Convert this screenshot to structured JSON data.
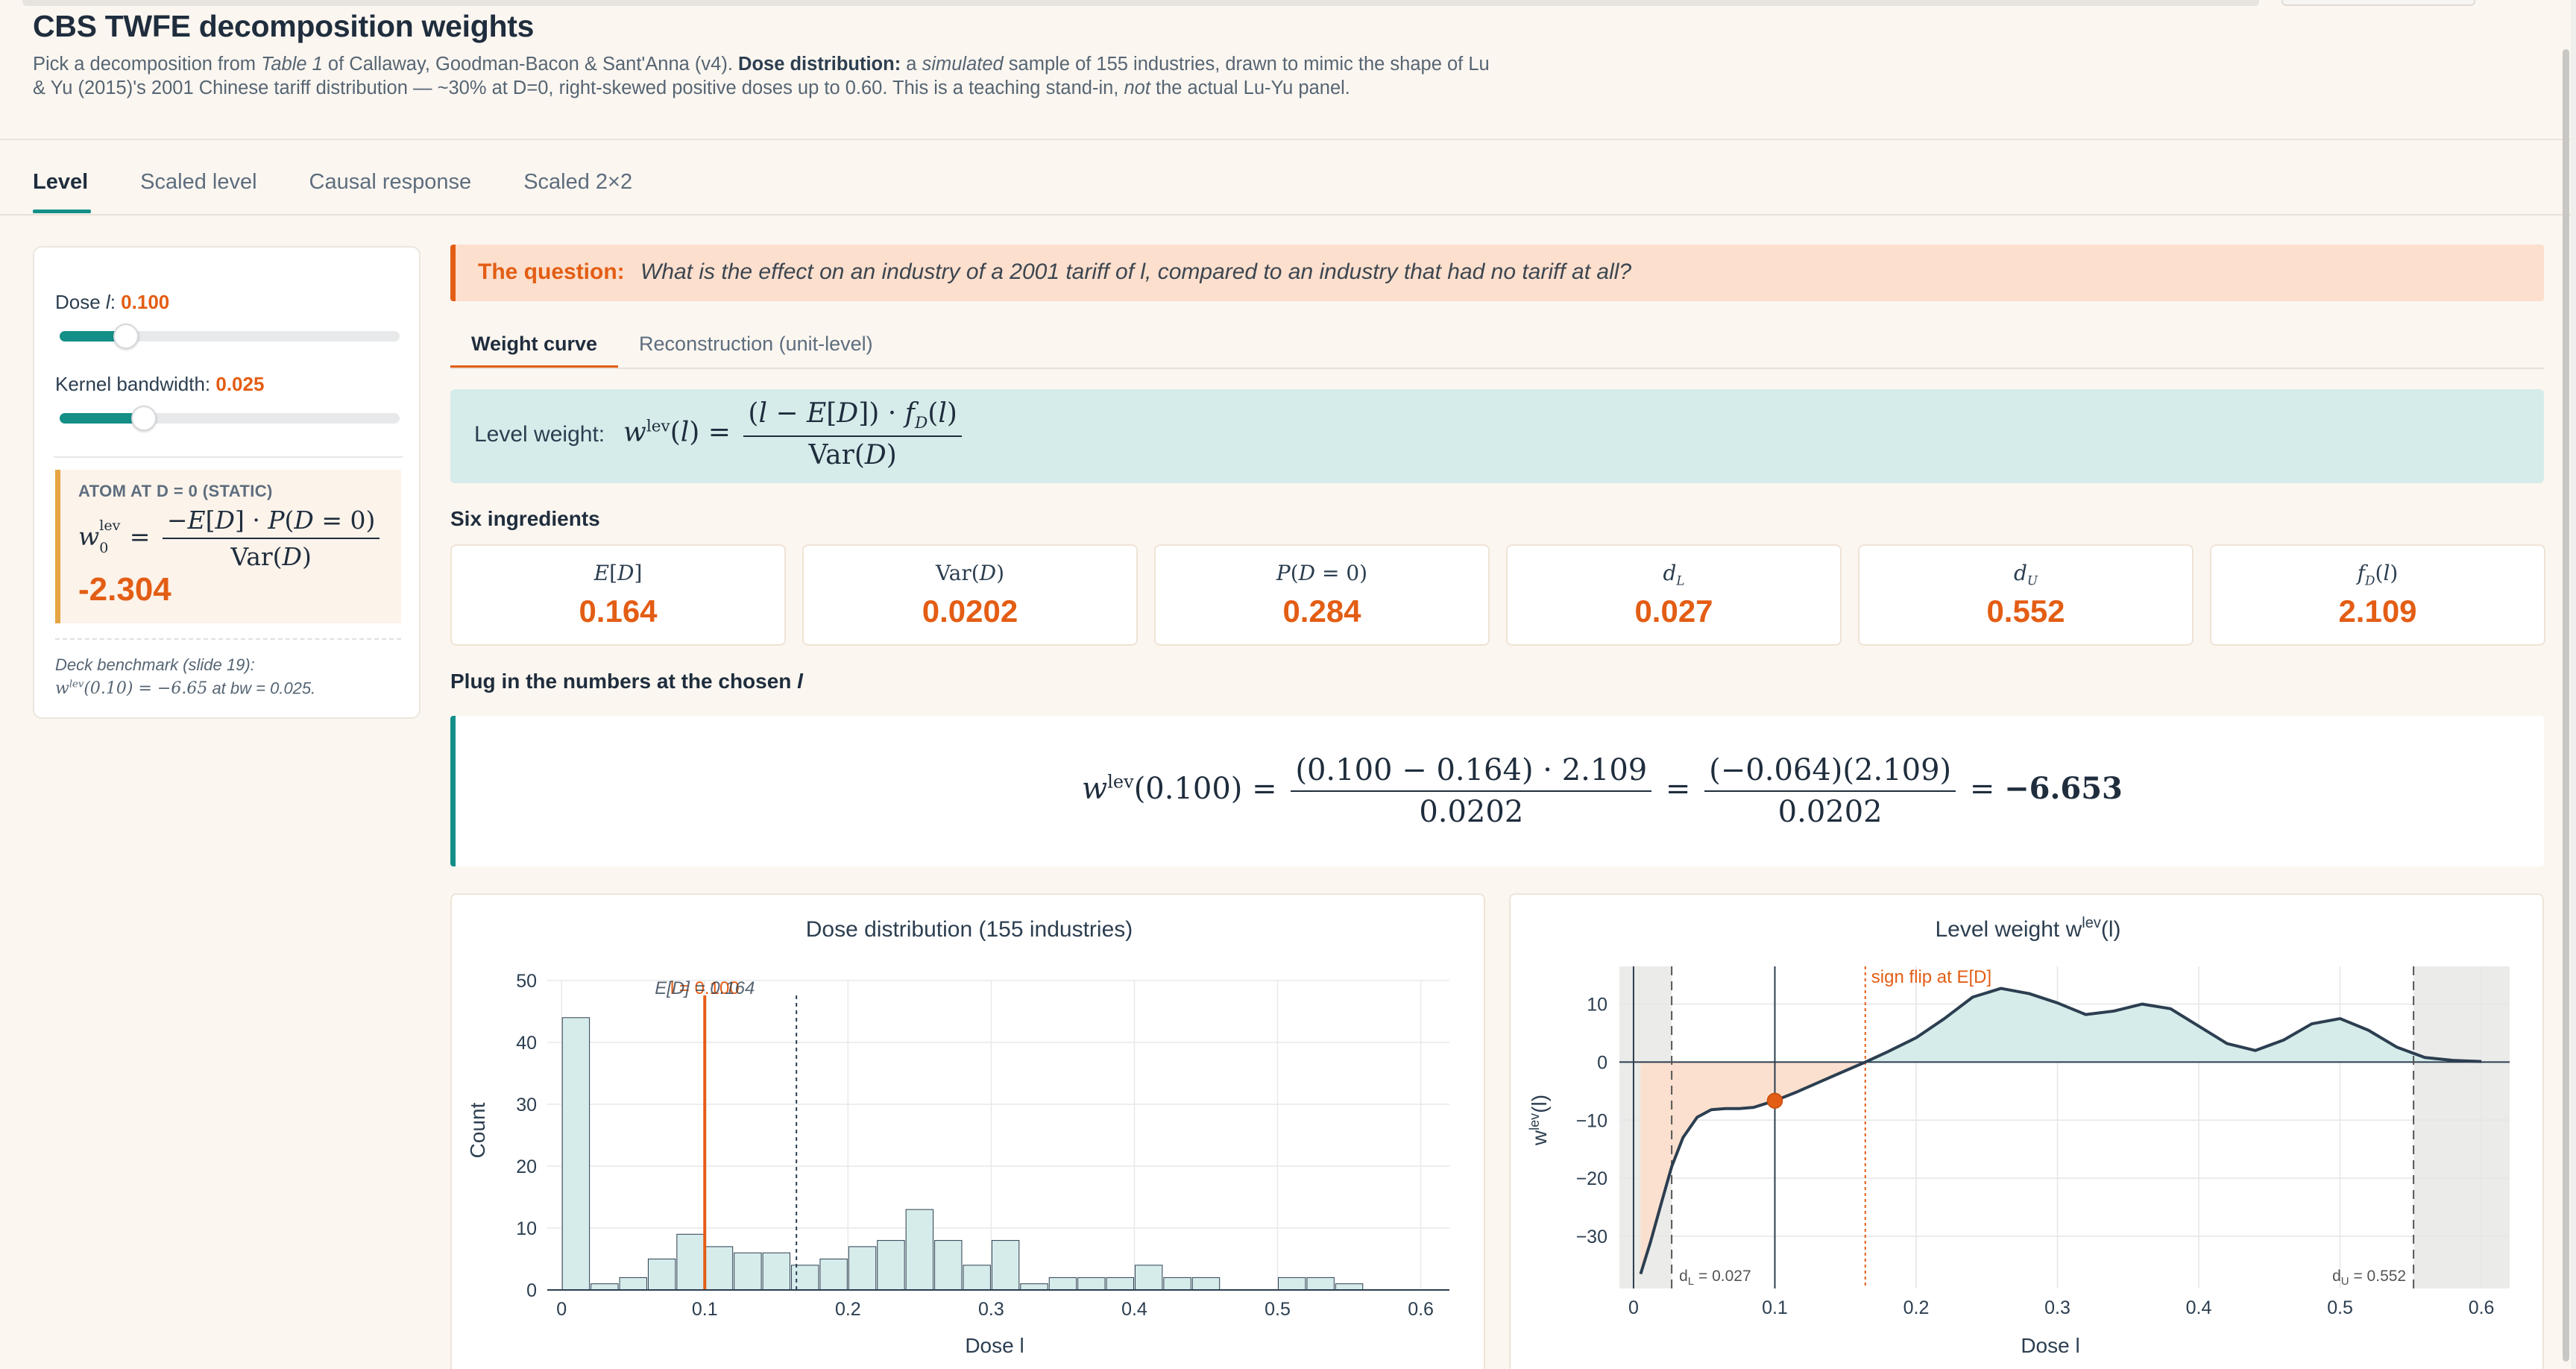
{
  "header": {
    "title": "CBS TWFE decomposition weights",
    "desc_1": "Pick a decomposition from ",
    "desc_table": "Table 1",
    "desc_2": " of Callaway, Goodman-Bacon & Sant'Anna (v4). ",
    "desc_bold": "Dose distribution:",
    "desc_3": " a ",
    "desc_sim": "simulated",
    "desc_4": " sample of 155 industries, drawn to mimic the shape of Lu & Yu (2015)'s 2001 Chinese tariff distribution — ~30% at D=0, right-skewed positive doses up to 0.60. This is a teaching stand-in, ",
    "desc_not": "not",
    "desc_5": " the actual Lu-Yu panel."
  },
  "tabs": [
    "Level",
    "Scaled level",
    "Causal response",
    "Scaled 2×2"
  ],
  "sidebar": {
    "dose_label": "Dose ",
    "dose_sym": "l",
    "dose_colon": ":",
    "dose_value": "0.100",
    "dose_fraction": 0.167,
    "bw_label": "Kernel bandwidth:",
    "bw_value": "0.025",
    "bw_fraction": 0.22,
    "atom_header": "ATOM AT D = 0 (STATIC)",
    "atom_value": "-2.304",
    "bench_line1": "Deck benchmark (slide 19):",
    "bench_line2": " at bw = 0.025."
  },
  "question": {
    "label": "The question:",
    "text": "What is the effect on an industry of a 2001 tariff of l, compared to an industry that had no tariff at all?"
  },
  "subtabs": [
    "Weight curve",
    "Reconstruction (unit-level)"
  ],
  "weight_box": {
    "label": "Level weight:"
  },
  "ingredients": {
    "title": "Six ingredients",
    "cards": [
      {
        "label": "E[D]",
        "value": "0.164"
      },
      {
        "label": "Var(D)",
        "value": "0.0202"
      },
      {
        "label": "P(D = 0)",
        "value": "0.284"
      },
      {
        "label": "d_L",
        "value": "0.027"
      },
      {
        "label": "d_U",
        "value": "0.552"
      },
      {
        "label": "f_D(l)",
        "value": "2.109"
      }
    ]
  },
  "plug": {
    "title_1": "Plug in the numbers at the chosen ",
    "title_sym": "l",
    "lhs_arg": "(0.100)",
    "num1": "(0.100 − 0.164) · 2.109",
    "den1": "0.0202",
    "num2": "(−0.064)(2.109)",
    "den2": "0.0202",
    "result": "−6.653"
  },
  "colors": {
    "accent": "#e35d14",
    "teal": "#148f88",
    "navy": "#2c3e50"
  },
  "chart_data": [
    {
      "type": "bar",
      "title": "Dose distribution (155 industries)",
      "xlabel": "Dose l",
      "ylabel": "Count",
      "bin_width": 0.02,
      "bin_starts": [
        0,
        0.02,
        0.04,
        0.06,
        0.08,
        0.1,
        0.12,
        0.14,
        0.16,
        0.18,
        0.2,
        0.22,
        0.24,
        0.26,
        0.28,
        0.3,
        0.32,
        0.34,
        0.36,
        0.38,
        0.4,
        0.42,
        0.44,
        0.46,
        0.48,
        0.5,
        0.52,
        0.54
      ],
      "values": [
        44,
        1,
        2,
        5,
        9,
        7,
        6,
        6,
        4,
        5,
        7,
        8,
        13,
        8,
        4,
        8,
        1,
        2,
        2,
        2,
        4,
        2,
        2,
        0,
        0,
        2,
        2,
        1
      ],
      "xlim": [
        -0.01,
        0.62
      ],
      "ylim": [
        0,
        50
      ],
      "xticks": [
        0,
        0.1,
        0.2,
        0.3,
        0.4,
        0.5,
        0.6
      ],
      "yticks": [
        0,
        10,
        20,
        30,
        40,
        50
      ],
      "vline_selected": 0.1,
      "vline_mean": 0.164,
      "annot_selected": "l = 0.100",
      "annot_mean": "E[D] = 0.164",
      "grid": true
    },
    {
      "type": "line",
      "title_pre": "Level weight  w",
      "title_sup": "lev",
      "title_post": "(l)",
      "xlabel": "Dose l",
      "ylabel_pre": "w",
      "ylabel_sup": "lev",
      "ylabel_post": "(l)",
      "x": [
        0.005,
        0.012,
        0.02,
        0.027,
        0.035,
        0.045,
        0.055,
        0.065,
        0.075,
        0.085,
        0.1,
        0.115,
        0.13,
        0.145,
        0.164,
        0.18,
        0.2,
        0.22,
        0.24,
        0.26,
        0.28,
        0.3,
        0.32,
        0.34,
        0.36,
        0.38,
        0.4,
        0.42,
        0.44,
        0.46,
        0.48,
        0.5,
        0.52,
        0.54,
        0.56,
        0.58,
        0.6
      ],
      "y": [
        -36.5,
        -31,
        -24,
        -18,
        -13,
        -9.5,
        -8.2,
        -8,
        -8,
        -7.8,
        -6.65,
        -5.2,
        -3.6,
        -2,
        0,
        1.8,
        4.2,
        7.5,
        11.2,
        12.7,
        11.8,
        10.2,
        8.2,
        8.8,
        10,
        9.2,
        6.2,
        3.2,
        2,
        3.8,
        6.6,
        7.5,
        5.5,
        2.6,
        0.8,
        0.3,
        0.1
      ],
      "xlim": [
        -0.01,
        0.62
      ],
      "ylim": [
        -39,
        16.5
      ],
      "xticks": [
        0,
        0.1,
        0.2,
        0.3,
        0.4,
        0.5,
        0.6
      ],
      "yticks": [
        -30,
        -20,
        -10,
        0,
        10
      ],
      "d_L": 0.027,
      "d_U": 0.552,
      "sign_flip_x": 0.164,
      "selected_x": 0.1,
      "selected_y": -6.65,
      "annot_sign_flip": "sign flip at E[D]",
      "annot_dL": "d",
      "annot_dL_sub": "L",
      "annot_dL_val": " = 0.027",
      "annot_dU": "d",
      "annot_dU_sub": "U",
      "annot_dU_val": " = 0.552"
    }
  ]
}
